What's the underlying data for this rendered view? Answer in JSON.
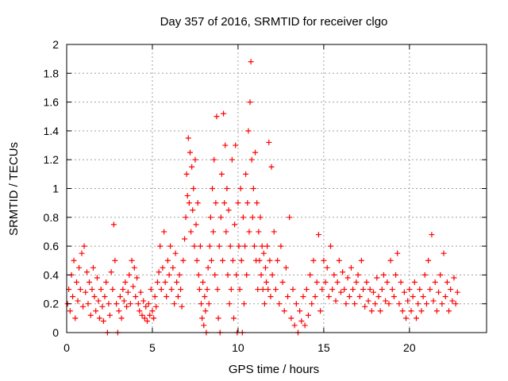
{
  "chart_data": {
    "type": "scatter",
    "title": "Day 357 of 2016, SRMTID for receiver clgo",
    "xlabel": "GPS time / hours",
    "ylabel": "SRMTID / TECUs",
    "xlim": [
      0,
      24.5
    ],
    "ylim": [
      0,
      2
    ],
    "xticks": [
      0,
      5,
      10,
      15,
      20
    ],
    "xtick_labels": [
      "0",
      "5",
      "10",
      "15",
      "20"
    ],
    "yticks": [
      0,
      0.2,
      0.4,
      0.6,
      0.8,
      1.0,
      1.2,
      1.4,
      1.6,
      1.8,
      2.0
    ],
    "ytick_labels": [
      "0",
      "0.2",
      "0.4",
      "0.6",
      "0.8",
      "1",
      "1.2",
      "1.4",
      "1.6",
      "1.8",
      "2"
    ],
    "grid": true,
    "marker": "+",
    "color": "#ff0000",
    "series": [
      {
        "name": "SRMTID",
        "points": [
          [
            0.05,
            0.2
          ],
          [
            0.12,
            0.3
          ],
          [
            0.2,
            0.15
          ],
          [
            0.28,
            0.4
          ],
          [
            0.35,
            0.25
          ],
          [
            0.42,
            0.5
          ],
          [
            0.5,
            0.1
          ],
          [
            0.58,
            0.35
          ],
          [
            0.65,
            0.22
          ],
          [
            0.72,
            0.45
          ],
          [
            0.8,
            0.3
          ],
          [
            0.88,
            0.55
          ],
          [
            0.95,
            0.18
          ],
          [
            1.02,
            0.6
          ],
          [
            1.1,
            0.28
          ],
          [
            1.18,
            0.42
          ],
          [
            1.25,
            0.2
          ],
          [
            1.32,
            0.35
          ],
          [
            1.4,
            0.12
          ],
          [
            1.48,
            0.3
          ],
          [
            1.55,
            0.45
          ],
          [
            1.62,
            0.25
          ],
          [
            1.7,
            0.15
          ],
          [
            1.78,
            0.38
          ],
          [
            1.85,
            0.22
          ],
          [
            1.92,
            0.1
          ],
          [
            2.0,
            0.3
          ],
          [
            2.08,
            0.18
          ],
          [
            2.15,
            0.08
          ],
          [
            2.22,
            0.25
          ],
          [
            2.3,
            0.35
          ],
          [
            2.38,
            0.0
          ],
          [
            2.45,
            0.2
          ],
          [
            2.52,
            0.12
          ],
          [
            2.6,
            0.42
          ],
          [
            2.68,
            0.3
          ],
          [
            2.75,
            0.75
          ],
          [
            2.82,
            0.5
          ],
          [
            2.9,
            0.2
          ],
          [
            2.98,
            0.0
          ],
          [
            3.05,
            0.15
          ],
          [
            3.12,
            0.25
          ],
          [
            3.2,
            0.1
          ],
          [
            3.28,
            0.3
          ],
          [
            3.35,
            0.22
          ],
          [
            3.42,
            0.35
          ],
          [
            3.5,
            0.18
          ],
          [
            3.58,
            0.28
          ],
          [
            3.65,
            0.4
          ],
          [
            3.72,
            0.2
          ],
          [
            3.8,
            0.5
          ],
          [
            3.88,
            0.32
          ],
          [
            3.95,
            0.45
          ],
          [
            4.02,
            0.25
          ],
          [
            4.1,
            0.38
          ],
          [
            4.18,
            0.2
          ],
          [
            4.25,
            0.15
          ],
          [
            4.32,
            0.28
          ],
          [
            4.4,
            0.12
          ],
          [
            4.48,
            0.22
          ],
          [
            4.55,
            0.1
          ],
          [
            4.62,
            0.18
          ],
          [
            4.7,
            0.08
          ],
          [
            4.78,
            0.2
          ],
          [
            4.85,
            0.12
          ],
          [
            4.92,
            0.3
          ],
          [
            5.0,
            0.15
          ],
          [
            5.08,
            0.1
          ],
          [
            5.15,
            0.25
          ],
          [
            5.22,
            0.18
          ],
          [
            5.3,
            0.35
          ],
          [
            5.38,
            0.42
          ],
          [
            5.45,
            0.6
          ],
          [
            5.52,
            0.3
          ],
          [
            5.6,
            0.45
          ],
          [
            5.68,
            0.7
          ],
          [
            5.75,
            0.35
          ],
          [
            5.82,
            0.25
          ],
          [
            5.9,
            0.5
          ],
          [
            5.98,
            0.4
          ],
          [
            6.05,
            0.6
          ],
          [
            6.12,
            0.3
          ],
          [
            6.2,
            0.45
          ],
          [
            6.28,
            0.2
          ],
          [
            6.35,
            0.55
          ],
          [
            6.42,
            0.35
          ],
          [
            6.5,
            0.25
          ],
          [
            6.58,
            0.4
          ],
          [
            6.65,
            0.3
          ],
          [
            6.72,
            0.18
          ],
          [
            6.8,
            0.5
          ],
          [
            6.88,
            0.65
          ],
          [
            6.95,
            0.8
          ],
          [
            7.0,
            1.1
          ],
          [
            7.05,
            0.95
          ],
          [
            7.1,
            1.35
          ],
          [
            7.15,
            0.9
          ],
          [
            7.2,
            1.25
          ],
          [
            7.25,
            0.7
          ],
          [
            7.3,
            1.15
          ],
          [
            7.35,
            0.85
          ],
          [
            7.4,
            1.0
          ],
          [
            7.45,
            0.6
          ],
          [
            7.5,
            1.2
          ],
          [
            7.55,
            0.75
          ],
          [
            7.6,
            0.5
          ],
          [
            7.65,
            0.9
          ],
          [
            7.7,
            0.4
          ],
          [
            7.75,
            0.3
          ],
          [
            7.8,
            0.6
          ],
          [
            7.85,
            0.2
          ],
          [
            7.9,
            0.1
          ],
          [
            7.95,
            0.35
          ],
          [
            8.0,
            0.05
          ],
          [
            8.05,
            0.25
          ],
          [
            8.1,
            0.15
          ],
          [
            8.15,
            0.0
          ],
          [
            8.2,
            0.3
          ],
          [
            8.25,
            0.45
          ],
          [
            8.3,
            0.2
          ],
          [
            8.35,
            0.6
          ],
          [
            8.4,
            0.8
          ],
          [
            8.45,
            0.5
          ],
          [
            8.5,
            1.0
          ],
          [
            8.55,
            0.7
          ],
          [
            8.6,
            1.2
          ],
          [
            8.65,
            0.4
          ],
          [
            8.7,
            0.9
          ],
          [
            8.75,
            1.5
          ],
          [
            8.8,
            0.3
          ],
          [
            8.85,
            0.1
          ],
          [
            8.9,
            0.6
          ],
          [
            8.95,
            0.0
          ],
          [
            9.0,
            0.8
          ],
          [
            9.05,
            1.1
          ],
          [
            9.1,
            0.5
          ],
          [
            9.15,
            1.52
          ],
          [
            9.2,
            0.9
          ],
          [
            9.25,
            1.3
          ],
          [
            9.3,
            0.7
          ],
          [
            9.35,
            1.0
          ],
          [
            9.4,
            0.4
          ],
          [
            9.45,
            0.85
          ],
          [
            9.5,
            0.2
          ],
          [
            9.55,
            0.6
          ],
          [
            9.6,
            0.3
          ],
          [
            9.65,
            1.2
          ],
          [
            9.7,
            0.5
          ],
          [
            9.75,
            0.1
          ],
          [
            9.8,
            0.75
          ],
          [
            9.85,
            1.3
          ],
          [
            9.9,
            0.4
          ],
          [
            9.95,
            0.0
          ],
          [
            10.0,
            0.9
          ],
          [
            10.05,
            0.6
          ],
          [
            10.1,
            0.3
          ],
          [
            10.15,
            1.0
          ],
          [
            10.2,
            0.5
          ],
          [
            10.25,
            0.0
          ],
          [
            10.3,
            0.8
          ],
          [
            10.35,
            0.2
          ],
          [
            10.4,
            0.6
          ],
          [
            10.45,
            1.1
          ],
          [
            10.5,
            0.4
          ],
          [
            10.55,
            0.9
          ],
          [
            10.6,
            1.4
          ],
          [
            10.65,
            0.7
          ],
          [
            10.7,
            1.6
          ],
          [
            10.75,
            1.88
          ],
          [
            10.8,
            1.2
          ],
          [
            10.85,
            0.8
          ],
          [
            10.9,
            1.0
          ],
          [
            10.95,
            0.6
          ],
          [
            11.0,
            1.25
          ],
          [
            11.05,
            0.5
          ],
          [
            11.1,
            0.9
          ],
          [
            11.15,
            0.3
          ],
          [
            11.2,
            0.7
          ],
          [
            11.25,
            0.5
          ],
          [
            11.3,
            0.8
          ],
          [
            11.35,
            0.4
          ],
          [
            11.4,
            0.6
          ],
          [
            11.45,
            0.3
          ],
          [
            11.5,
            0.55
          ],
          [
            11.55,
            0.2
          ],
          [
            11.6,
            0.45
          ],
          [
            11.65,
            0.35
          ],
          [
            11.7,
            0.6
          ],
          [
            11.75,
            0.3
          ],
          [
            11.8,
            1.32
          ],
          [
            11.85,
            0.5
          ],
          [
            11.9,
            0.25
          ],
          [
            11.95,
            1.15
          ],
          [
            12.0,
            0.4
          ],
          [
            12.1,
            0.7
          ],
          [
            12.2,
            0.3
          ],
          [
            12.3,
            0.5
          ],
          [
            12.4,
            0.2
          ],
          [
            12.5,
            0.6
          ],
          [
            12.6,
            0.35
          ],
          [
            12.7,
            0.15
          ],
          [
            12.8,
            0.45
          ],
          [
            12.9,
            0.25
          ],
          [
            13.0,
            0.8
          ],
          [
            13.1,
            0.1
          ],
          [
            13.2,
            0.3
          ],
          [
            13.3,
            0.05
          ],
          [
            13.4,
            0.2
          ],
          [
            13.5,
            0.0
          ],
          [
            13.6,
            0.15
          ],
          [
            13.7,
            0.08
          ],
          [
            13.8,
            0.25
          ],
          [
            13.9,
            0.05
          ],
          [
            14.0,
            0.3
          ],
          [
            14.1,
            0.12
          ],
          [
            14.2,
            0.4
          ],
          [
            14.3,
            0.2
          ],
          [
            14.4,
            0.5
          ],
          [
            14.5,
            0.25
          ],
          [
            14.6,
            0.35
          ],
          [
            14.7,
            0.68
          ],
          [
            14.8,
            0.15
          ],
          [
            14.9,
            0.3
          ],
          [
            15.0,
            0.5
          ],
          [
            15.1,
            0.35
          ],
          [
            15.2,
            0.45
          ],
          [
            15.3,
            0.25
          ],
          [
            15.4,
            0.6
          ],
          [
            15.5,
            0.3
          ],
          [
            15.6,
            0.4
          ],
          [
            15.7,
            0.22
          ],
          [
            15.8,
            0.35
          ],
          [
            15.9,
            0.5
          ],
          [
            16.0,
            0.28
          ],
          [
            16.1,
            0.42
          ],
          [
            16.2,
            0.3
          ],
          [
            16.3,
            0.2
          ],
          [
            16.4,
            0.38
          ],
          [
            16.5,
            0.25
          ],
          [
            16.6,
            0.45
          ],
          [
            16.7,
            0.3
          ],
          [
            16.8,
            0.2
          ],
          [
            16.9,
            0.35
          ],
          [
            17.0,
            0.4
          ],
          [
            17.1,
            0.25
          ],
          [
            17.2,
            0.5
          ],
          [
            17.3,
            0.3
          ],
          [
            17.4,
            0.18
          ],
          [
            17.5,
            0.35
          ],
          [
            17.6,
            0.22
          ],
          [
            17.7,
            0.3
          ],
          [
            17.8,
            0.15
          ],
          [
            17.9,
            0.28
          ],
          [
            18.0,
            0.2
          ],
          [
            18.1,
            0.38
          ],
          [
            18.2,
            0.25
          ],
          [
            18.3,
            0.15
          ],
          [
            18.4,
            0.3
          ],
          [
            18.5,
            0.4
          ],
          [
            18.6,
            0.22
          ],
          [
            18.7,
            0.35
          ],
          [
            18.8,
            0.2
          ],
          [
            18.9,
            0.5
          ],
          [
            19.0,
            0.3
          ],
          [
            19.1,
            0.25
          ],
          [
            19.2,
            0.4
          ],
          [
            19.3,
            0.55
          ],
          [
            19.4,
            0.2
          ],
          [
            19.5,
            0.35
          ],
          [
            19.6,
            0.15
          ],
          [
            19.7,
            0.28
          ],
          [
            19.8,
            0.1
          ],
          [
            19.9,
            0.22
          ],
          [
            20.0,
            0.3
          ],
          [
            20.1,
            0.15
          ],
          [
            20.2,
            0.25
          ],
          [
            20.3,
            0.35
          ],
          [
            20.4,
            0.1
          ],
          [
            20.5,
            0.2
          ],
          [
            20.6,
            0.3
          ],
          [
            20.7,
            0.15
          ],
          [
            20.8,
            0.25
          ],
          [
            20.9,
            0.4
          ],
          [
            21.0,
            0.2
          ],
          [
            21.1,
            0.5
          ],
          [
            21.2,
            0.3
          ],
          [
            21.3,
            0.68
          ],
          [
            21.4,
            0.22
          ],
          [
            21.5,
            0.35
          ],
          [
            21.6,
            0.15
          ],
          [
            21.7,
            0.28
          ],
          [
            21.8,
            0.4
          ],
          [
            21.9,
            0.2
          ],
          [
            22.0,
            0.55
          ],
          [
            22.1,
            0.25
          ],
          [
            22.2,
            0.35
          ],
          [
            22.3,
            0.15
          ],
          [
            22.4,
            0.3
          ],
          [
            22.5,
            0.22
          ],
          [
            22.6,
            0.38
          ],
          [
            22.7,
            0.2
          ],
          [
            22.8,
            0.28
          ]
        ]
      }
    ]
  }
}
